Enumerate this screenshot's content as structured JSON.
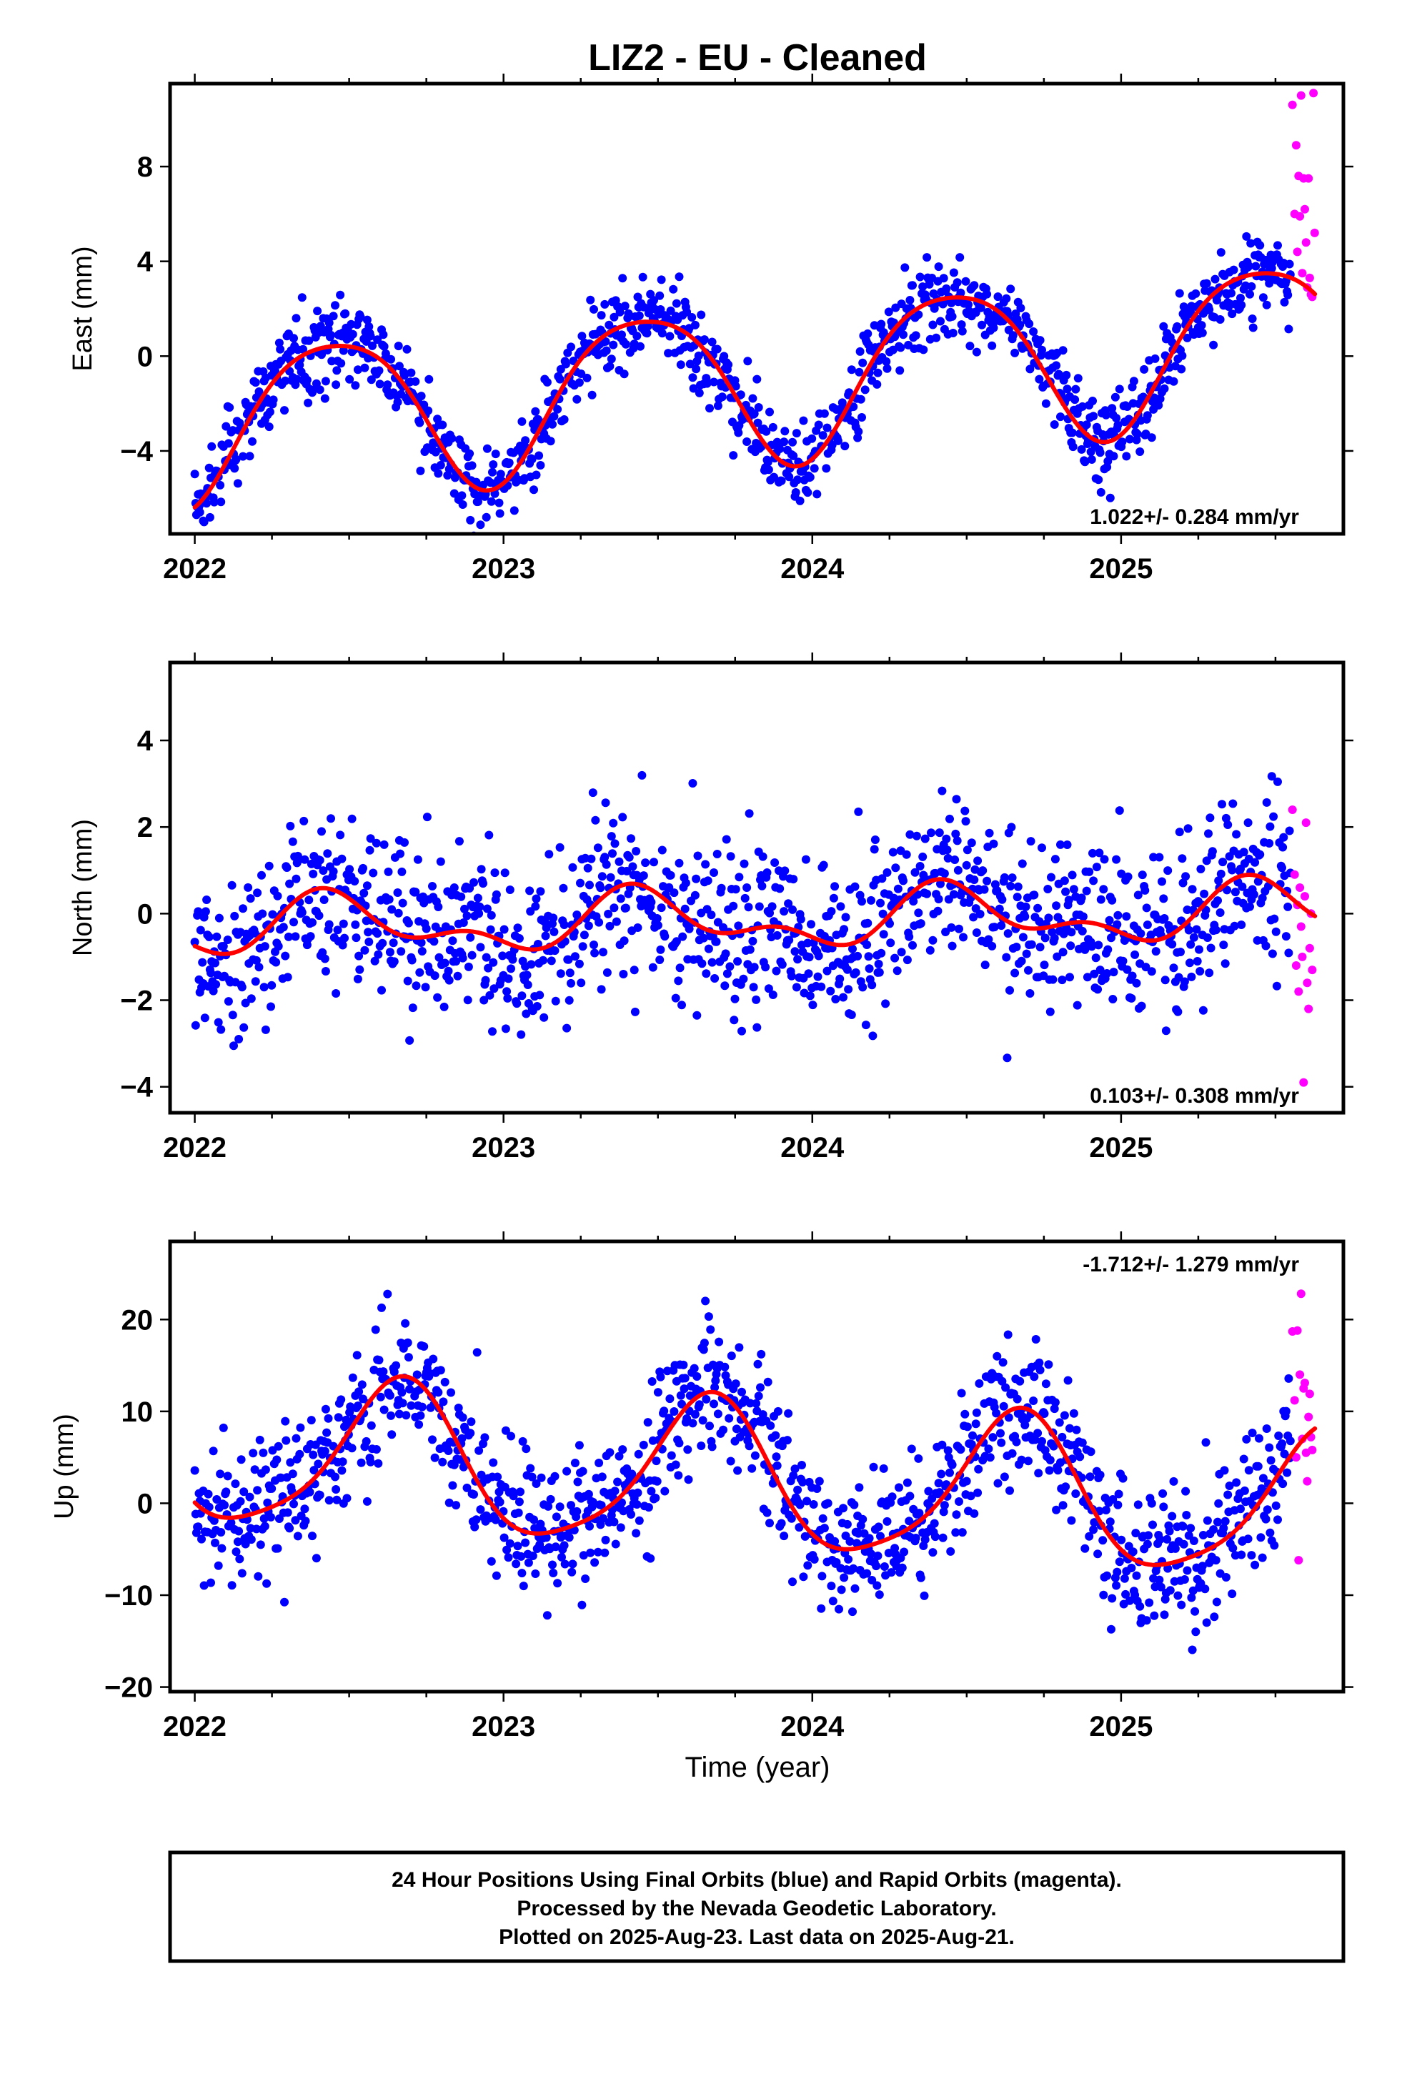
{
  "title": "LIZ2  - EU - Cleaned",
  "xlabel": "Time (year)",
  "colors": {
    "final": "#0000ff",
    "rapid": "#ff00ff",
    "fit": "#ff0000",
    "frame": "#000000"
  },
  "footer": {
    "line1": "24 Hour Positions Using Final Orbits (blue) and Rapid Orbits (magenta).",
    "line2": "Processed by the Nevada Geodetic Laboratory.",
    "line3": "Plotted on 2025-Aug-23. Last data on 2025-Aug-21."
  },
  "chart_data": [
    {
      "type": "scatter",
      "panel": "east",
      "ylabel": "East (mm)",
      "rate_label": "1.022+/- 0.284 mm/yr",
      "rate_position": "bottom-right",
      "xlim": [
        2021.92,
        2025.72
      ],
      "ylim": [
        -7.5,
        11.5
      ],
      "xticks": [
        2022,
        2023,
        2024,
        2025
      ],
      "yticks": [
        -4,
        0,
        4,
        8
      ],
      "series": [
        {
          "name": "Final Orbits",
          "color": "#0000ff",
          "x_range": [
            2022.0,
            2025.55
          ],
          "model": {
            "rate": 1.022,
            "offset": -1.0,
            "annual_amp": 3.3,
            "peak_phase": 0.45,
            "semi_amp": 0.5,
            "semi_peak_phase": 0.2
          },
          "scatter_sd": 0.9
        },
        {
          "name": "Rapid Orbits",
          "color": "#ff00ff",
          "x_range": [
            2025.55,
            2025.63
          ],
          "values": [
            [
              2025.555,
              10.6
            ],
            [
              2025.562,
              6.0
            ],
            [
              2025.567,
              8.9
            ],
            [
              2025.571,
              4.4
            ],
            [
              2025.575,
              7.6
            ],
            [
              2025.579,
              5.9
            ],
            [
              2025.583,
              11.0
            ],
            [
              2025.587,
              3.5
            ],
            [
              2025.591,
              7.5
            ],
            [
              2025.595,
              6.2
            ],
            [
              2025.599,
              4.8
            ],
            [
              2025.603,
              2.9
            ],
            [
              2025.607,
              7.5
            ],
            [
              2025.611,
              3.3
            ],
            [
              2025.615,
              2.6
            ],
            [
              2025.619,
              2.5
            ],
            [
              2025.623,
              11.1
            ],
            [
              2025.627,
              5.2
            ]
          ]
        },
        {
          "name": "Fit",
          "color": "#ff0000",
          "x_range": [
            2022.0,
            2025.63
          ]
        }
      ]
    },
    {
      "type": "scatter",
      "panel": "north",
      "ylabel": "North (mm)",
      "rate_label": "0.103+/- 0.308 mm/yr",
      "rate_position": "bottom-right",
      "xlim": [
        2021.92,
        2025.72
      ],
      "ylim": [
        -4.6,
        5.8
      ],
      "xticks": [
        2022,
        2023,
        2024,
        2025
      ],
      "yticks": [
        -4,
        -2,
        0,
        2,
        4
      ],
      "series": [
        {
          "name": "Final Orbits",
          "color": "#0000ff",
          "x_range": [
            2022.0,
            2025.55
          ],
          "model": {
            "rate": 0.103,
            "offset": -0.15,
            "annual_amp": 0.55,
            "peak_phase": 0.45,
            "semi_amp": 0.35,
            "semi_peak_phase": 0.4
          },
          "scatter_sd": 1.0
        },
        {
          "name": "Rapid Orbits",
          "color": "#ff00ff",
          "x_range": [
            2025.55,
            2025.63
          ],
          "values": [
            [
              2025.555,
              2.4
            ],
            [
              2025.562,
              0.9
            ],
            [
              2025.567,
              -1.2
            ],
            [
              2025.571,
              0.2
            ],
            [
              2025.575,
              -1.8
            ],
            [
              2025.579,
              0.6
            ],
            [
              2025.583,
              -0.3
            ],
            [
              2025.587,
              -1.0
            ],
            [
              2025.591,
              -3.9
            ],
            [
              2025.595,
              0.4
            ],
            [
              2025.599,
              2.1
            ],
            [
              2025.603,
              -1.6
            ],
            [
              2025.607,
              -2.2
            ],
            [
              2025.611,
              -0.8
            ],
            [
              2025.615,
              0.0
            ],
            [
              2025.619,
              -1.3
            ]
          ]
        },
        {
          "name": "Fit",
          "color": "#ff0000",
          "x_range": [
            2022.0,
            2025.63
          ]
        }
      ]
    },
    {
      "type": "scatter",
      "panel": "up",
      "ylabel": "Up (mm)",
      "rate_label": "-1.712+/- 1.279 mm/yr",
      "rate_position": "top-right",
      "xlim": [
        2021.92,
        2025.72
      ],
      "ylim": [
        -20.5,
        28.5
      ],
      "xticks": [
        2022,
        2023,
        2024,
        2025
      ],
      "yticks": [
        -20,
        -10,
        0,
        10,
        20
      ],
      "series": [
        {
          "name": "Final Orbits",
          "color": "#0000ff",
          "x_range": [
            2022.0,
            2025.55
          ],
          "model": {
            "rate": -1.712,
            "offset": 2.5,
            "annual_amp": 8.0,
            "peak_phase": 0.66,
            "semi_amp": 1.5,
            "semi_peak_phase": 0.2
          },
          "scatter_sd": 4.0
        },
        {
          "name": "Rapid Orbits",
          "color": "#ff00ff",
          "x_range": [
            2025.55,
            2025.63
          ],
          "values": [
            [
              2025.555,
              18.7
            ],
            [
              2025.562,
              11.2
            ],
            [
              2025.567,
              5.0
            ],
            [
              2025.571,
              18.8
            ],
            [
              2025.575,
              -6.2
            ],
            [
              2025.579,
              14.0
            ],
            [
              2025.583,
              22.8
            ],
            [
              2025.587,
              7.0
            ],
            [
              2025.591,
              12.5
            ],
            [
              2025.595,
              13.1
            ],
            [
              2025.599,
              5.5
            ],
            [
              2025.603,
              2.4
            ],
            [
              2025.607,
              9.4
            ],
            [
              2025.611,
              11.9
            ],
            [
              2025.615,
              7.2
            ],
            [
              2025.619,
              5.8
            ]
          ]
        },
        {
          "name": "Fit",
          "color": "#ff0000",
          "x_range": [
            2022.0,
            2025.63
          ]
        }
      ]
    }
  ]
}
